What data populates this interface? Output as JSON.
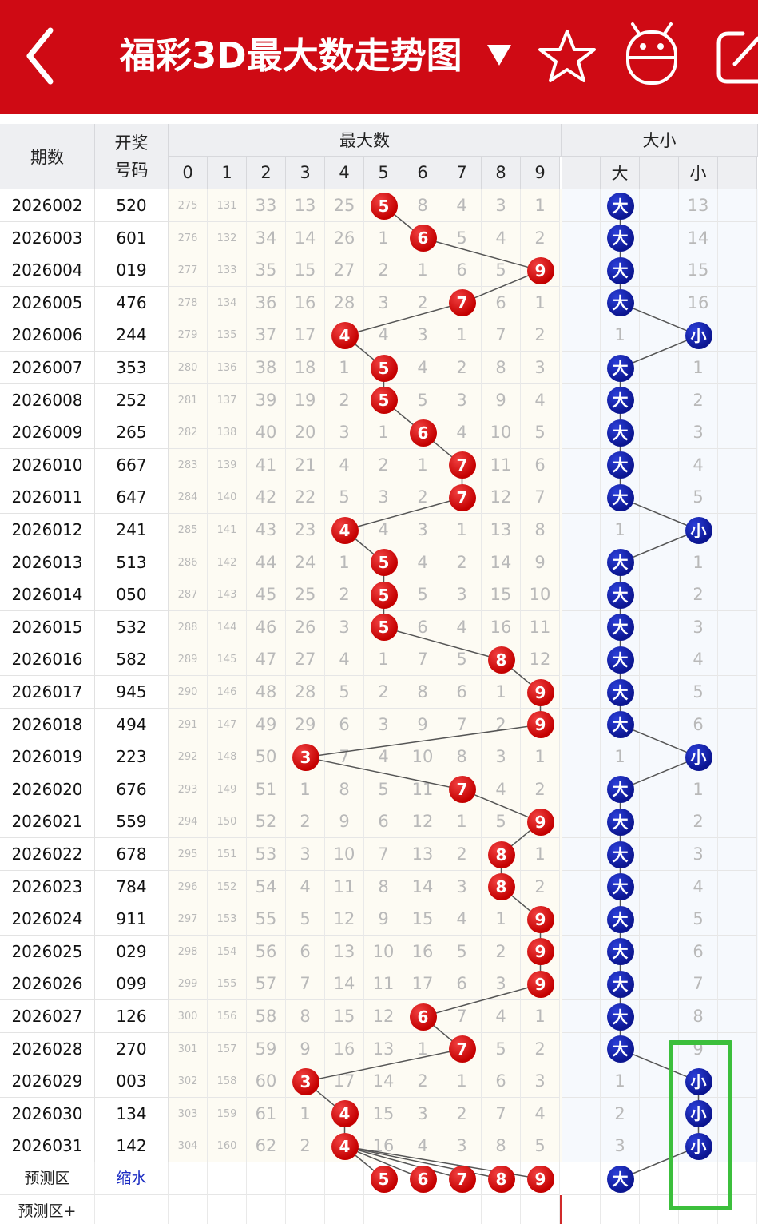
{
  "app_bar": {
    "title": "福彩3D最大数走势图",
    "colors": {
      "background": "#cf0a14",
      "foreground": "#ffffff"
    },
    "icons": [
      "back-arrow-icon",
      "dropdown-triangle-icon",
      "star-icon",
      "robot-icon",
      "edit-icon"
    ]
  },
  "table": {
    "headers": {
      "issue": "期数",
      "code_top": "开奖",
      "code_bottom": "号码",
      "max_group": "最大数",
      "size_group": "大小",
      "digits": [
        "0",
        "1",
        "2",
        "3",
        "4",
        "5",
        "6",
        "7",
        "8",
        "9"
      ],
      "big": "大",
      "small": "小"
    },
    "rows": [
      {
        "issue": "2026002",
        "code": "520",
        "digits": [
          "275",
          "131",
          "33",
          "13",
          "25",
          "5",
          "8",
          "4",
          "3",
          "1"
        ],
        "big": "大",
        "small": "13"
      },
      {
        "issue": "2026003",
        "code": "601",
        "digits": [
          "276",
          "132",
          "34",
          "14",
          "26",
          "1",
          "6",
          "5",
          "4",
          "2"
        ],
        "big": "大",
        "small": "14"
      },
      {
        "issue": "2026004",
        "code": "019",
        "digits": [
          "277",
          "133",
          "35",
          "15",
          "27",
          "2",
          "1",
          "6",
          "5",
          "9"
        ],
        "big": "大",
        "small": "15"
      },
      {
        "issue": "2026005",
        "code": "476",
        "digits": [
          "278",
          "134",
          "36",
          "16",
          "28",
          "3",
          "2",
          "7",
          "6",
          "1"
        ],
        "big": "大",
        "small": "16"
      },
      {
        "issue": "2026006",
        "code": "244",
        "digits": [
          "279",
          "135",
          "37",
          "17",
          "4",
          "4",
          "3",
          "1",
          "7",
          "2"
        ],
        "big": "1",
        "small": "小"
      },
      {
        "issue": "2026007",
        "code": "353",
        "digits": [
          "280",
          "136",
          "38",
          "18",
          "1",
          "5",
          "4",
          "2",
          "8",
          "3"
        ],
        "big": "大",
        "small": "1"
      },
      {
        "issue": "2026008",
        "code": "252",
        "digits": [
          "281",
          "137",
          "39",
          "19",
          "2",
          "5",
          "5",
          "3",
          "9",
          "4"
        ],
        "big": "大",
        "small": "2"
      },
      {
        "issue": "2026009",
        "code": "265",
        "digits": [
          "282",
          "138",
          "40",
          "20",
          "3",
          "1",
          "6",
          "4",
          "10",
          "5"
        ],
        "big": "大",
        "small": "3"
      },
      {
        "issue": "2026010",
        "code": "667",
        "digits": [
          "283",
          "139",
          "41",
          "21",
          "4",
          "2",
          "1",
          "7",
          "11",
          "6"
        ],
        "big": "大",
        "small": "4"
      },
      {
        "issue": "2026011",
        "code": "647",
        "digits": [
          "284",
          "140",
          "42",
          "22",
          "5",
          "3",
          "2",
          "7",
          "12",
          "7"
        ],
        "big": "大",
        "small": "5"
      },
      {
        "issue": "2026012",
        "code": "241",
        "digits": [
          "285",
          "141",
          "43",
          "23",
          "4",
          "4",
          "3",
          "1",
          "13",
          "8"
        ],
        "big": "1",
        "small": "小"
      },
      {
        "issue": "2026013",
        "code": "513",
        "digits": [
          "286",
          "142",
          "44",
          "24",
          "1",
          "5",
          "4",
          "2",
          "14",
          "9"
        ],
        "big": "大",
        "small": "1"
      },
      {
        "issue": "2026014",
        "code": "050",
        "digits": [
          "287",
          "143",
          "45",
          "25",
          "2",
          "5",
          "5",
          "3",
          "15",
          "10"
        ],
        "big": "大",
        "small": "2"
      },
      {
        "issue": "2026015",
        "code": "532",
        "digits": [
          "288",
          "144",
          "46",
          "26",
          "3",
          "5",
          "6",
          "4",
          "16",
          "11"
        ],
        "big": "大",
        "small": "3"
      },
      {
        "issue": "2026016",
        "code": "582",
        "digits": [
          "289",
          "145",
          "47",
          "27",
          "4",
          "1",
          "7",
          "5",
          "8",
          "12"
        ],
        "big": "大",
        "small": "4"
      },
      {
        "issue": "2026017",
        "code": "945",
        "digits": [
          "290",
          "146",
          "48",
          "28",
          "5",
          "2",
          "8",
          "6",
          "1",
          "9"
        ],
        "big": "大",
        "small": "5"
      },
      {
        "issue": "2026018",
        "code": "494",
        "digits": [
          "291",
          "147",
          "49",
          "29",
          "6",
          "3",
          "9",
          "7",
          "2",
          "9"
        ],
        "big": "大",
        "small": "6"
      },
      {
        "issue": "2026019",
        "code": "223",
        "digits": [
          "292",
          "148",
          "50",
          "3",
          "7",
          "4",
          "10",
          "8",
          "3",
          "1"
        ],
        "big": "1",
        "small": "小"
      },
      {
        "issue": "2026020",
        "code": "676",
        "digits": [
          "293",
          "149",
          "51",
          "1",
          "8",
          "5",
          "11",
          "7",
          "4",
          "2"
        ],
        "big": "大",
        "small": "1"
      },
      {
        "issue": "2026021",
        "code": "559",
        "digits": [
          "294",
          "150",
          "52",
          "2",
          "9",
          "6",
          "12",
          "1",
          "5",
          "9"
        ],
        "big": "大",
        "small": "2"
      },
      {
        "issue": "2026022",
        "code": "678",
        "digits": [
          "295",
          "151",
          "53",
          "3",
          "10",
          "7",
          "13",
          "2",
          "8",
          "1"
        ],
        "big": "大",
        "small": "3"
      },
      {
        "issue": "2026023",
        "code": "784",
        "digits": [
          "296",
          "152",
          "54",
          "4",
          "11",
          "8",
          "14",
          "3",
          "8",
          "2"
        ],
        "big": "大",
        "small": "4"
      },
      {
        "issue": "2026024",
        "code": "911",
        "digits": [
          "297",
          "153",
          "55",
          "5",
          "12",
          "9",
          "15",
          "4",
          "1",
          "9"
        ],
        "big": "大",
        "small": "5"
      },
      {
        "issue": "2026025",
        "code": "029",
        "digits": [
          "298",
          "154",
          "56",
          "6",
          "13",
          "10",
          "16",
          "5",
          "2",
          "9"
        ],
        "big": "大",
        "small": "6"
      },
      {
        "issue": "2026026",
        "code": "099",
        "digits": [
          "299",
          "155",
          "57",
          "7",
          "14",
          "11",
          "17",
          "6",
          "3",
          "9"
        ],
        "big": "大",
        "small": "7"
      },
      {
        "issue": "2026027",
        "code": "126",
        "digits": [
          "300",
          "156",
          "58",
          "8",
          "15",
          "12",
          "6",
          "7",
          "4",
          "1"
        ],
        "big": "大",
        "small": "8"
      },
      {
        "issue": "2026028",
        "code": "270",
        "digits": [
          "301",
          "157",
          "59",
          "9",
          "16",
          "13",
          "1",
          "7",
          "5",
          "2"
        ],
        "big": "大",
        "small": "9"
      },
      {
        "issue": "2026029",
        "code": "003",
        "digits": [
          "302",
          "158",
          "60",
          "3",
          "17",
          "14",
          "2",
          "1",
          "6",
          "3"
        ],
        "big": "1",
        "small": "小"
      },
      {
        "issue": "2026030",
        "code": "134",
        "digits": [
          "303",
          "159",
          "61",
          "1",
          "4",
          "15",
          "3",
          "2",
          "7",
          "4"
        ],
        "big": "2",
        "small": "小"
      },
      {
        "issue": "2026031",
        "code": "142",
        "digits": [
          "304",
          "160",
          "62",
          "2",
          "4",
          "16",
          "4",
          "3",
          "8",
          "5"
        ],
        "big": "3",
        "small": "小"
      }
    ],
    "max_digit_per_row": [
      5,
      6,
      9,
      7,
      4,
      5,
      5,
      6,
      7,
      7,
      4,
      5,
      5,
      5,
      8,
      9,
      9,
      3,
      7,
      9,
      8,
      8,
      9,
      9,
      9,
      6,
      7,
      3,
      4,
      4
    ],
    "size_per_row": [
      "big",
      "big",
      "big",
      "big",
      "small",
      "big",
      "big",
      "big",
      "big",
      "big",
      "small",
      "big",
      "big",
      "big",
      "big",
      "big",
      "big",
      "small",
      "big",
      "big",
      "big",
      "big",
      "big",
      "big",
      "big",
      "big",
      "big",
      "small",
      "small",
      "small"
    ],
    "prediction": {
      "label": "预测区",
      "code_link": "缩水",
      "balls": [
        "5",
        "6",
        "7",
        "8",
        "9"
      ],
      "size_ball": "大",
      "plus_label": "预测区+"
    },
    "colors": {
      "red_ball": "#c40000",
      "blue_ball": "#0b1590",
      "highlight": "#3cbf3c"
    }
  }
}
